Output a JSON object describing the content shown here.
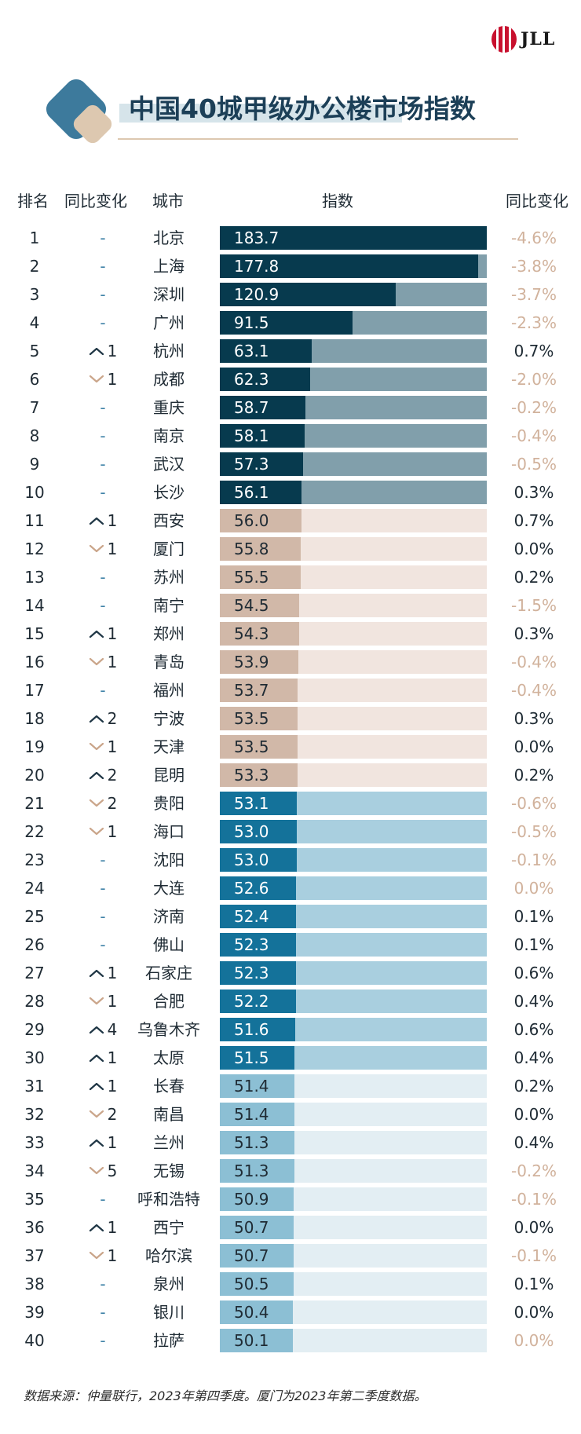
{
  "brand": {
    "logo_text": "JLL"
  },
  "title": "中国40城甲级办公楼市场指数",
  "headers": {
    "rank": "排名",
    "change": "同比变化",
    "city": "城市",
    "index": "指数",
    "yoy": "同比变化"
  },
  "source_note": "数据来源：仲量联行，2023年第四季度。厦门为2023年第二季度数据。",
  "colors": {
    "tier1_fill": "#073a4e",
    "tier1_track": "#819fab",
    "tier2_fill": "#d1b8a8",
    "tier2_track": "#f1e5df",
    "tier3_fill": "#14729a",
    "tier3_track": "#a9cfdf",
    "tier4_fill": "#8cbfd4",
    "tier4_track": "#e3eef3",
    "positive": "#1f2b34",
    "negative": "#d1b29c",
    "up_arrow": "#1f3645",
    "down_arrow": "#caa58a"
  },
  "chart_data": {
    "type": "bar",
    "title": "中国40城甲级办公楼市场指数",
    "xlabel": "指数",
    "ylabel": "城市",
    "xlim": [
      0,
      183.7
    ],
    "rows": [
      {
        "rank": "1",
        "dir": "none",
        "move": "-",
        "city": "北京",
        "value": 183.7,
        "label": "183.7",
        "yoy": "-4.6%",
        "tier": 1
      },
      {
        "rank": "2",
        "dir": "none",
        "move": "-",
        "city": "上海",
        "value": 177.8,
        "label": "177.8",
        "yoy": "-3.8%",
        "tier": 1
      },
      {
        "rank": "3",
        "dir": "none",
        "move": "-",
        "city": "深圳",
        "value": 120.9,
        "label": "120.9",
        "yoy": "-3.7%",
        "tier": 1
      },
      {
        "rank": "4",
        "dir": "none",
        "move": "-",
        "city": "广州",
        "value": 91.5,
        "label": "91.5",
        "yoy": "-2.3%",
        "tier": 1
      },
      {
        "rank": "5",
        "dir": "up",
        "move": "1",
        "city": "杭州",
        "value": 63.1,
        "label": "63.1",
        "yoy": "0.7%",
        "tier": 1
      },
      {
        "rank": "6",
        "dir": "down",
        "move": "1",
        "city": "成都",
        "value": 62.3,
        "label": "62.3",
        "yoy": "-2.0%",
        "tier": 1
      },
      {
        "rank": "7",
        "dir": "none",
        "move": "-",
        "city": "重庆",
        "value": 58.7,
        "label": "58.7",
        "yoy": "-0.2%",
        "tier": 1
      },
      {
        "rank": "8",
        "dir": "none",
        "move": "-",
        "city": "南京",
        "value": 58.1,
        "label": "58.1",
        "yoy": "-0.4%",
        "tier": 1
      },
      {
        "rank": "9",
        "dir": "none",
        "move": "-",
        "city": "武汉",
        "value": 57.3,
        "label": "57.3",
        "yoy": "-0.5%",
        "tier": 1
      },
      {
        "rank": "10",
        "dir": "none",
        "move": "-",
        "city": "长沙",
        "value": 56.1,
        "label": "56.1",
        "yoy": "0.3%",
        "tier": 1
      },
      {
        "rank": "11",
        "dir": "up",
        "move": "1",
        "city": "西安",
        "value": 56.0,
        "label": "56.0",
        "yoy": "0.7%",
        "tier": 2
      },
      {
        "rank": "12",
        "dir": "down",
        "move": "1",
        "city": "厦门",
        "value": 55.8,
        "label": "55.8",
        "yoy": "0.0%",
        "tier": 2
      },
      {
        "rank": "13",
        "dir": "none",
        "move": "-",
        "city": "苏州",
        "value": 55.5,
        "label": "55.5",
        "yoy": "0.2%",
        "tier": 2
      },
      {
        "rank": "14",
        "dir": "none",
        "move": "-",
        "city": "南宁",
        "value": 54.5,
        "label": "54.5",
        "yoy": "-1.5%",
        "tier": 2
      },
      {
        "rank": "15",
        "dir": "up",
        "move": "1",
        "city": "郑州",
        "value": 54.3,
        "label": "54.3",
        "yoy": "0.3%",
        "tier": 2
      },
      {
        "rank": "16",
        "dir": "down",
        "move": "1",
        "city": "青岛",
        "value": 53.9,
        "label": "53.9",
        "yoy": "-0.4%",
        "tier": 2
      },
      {
        "rank": "17",
        "dir": "none",
        "move": "-",
        "city": "福州",
        "value": 53.7,
        "label": "53.7",
        "yoy": "-0.4%",
        "tier": 2
      },
      {
        "rank": "18",
        "dir": "up",
        "move": "2",
        "city": "宁波",
        "value": 53.5,
        "label": "53.5",
        "yoy": "0.3%",
        "tier": 2
      },
      {
        "rank": "19",
        "dir": "down",
        "move": "1",
        "city": "天津",
        "value": 53.5,
        "label": "53.5",
        "yoy": "0.0%",
        "tier": 2
      },
      {
        "rank": "20",
        "dir": "up",
        "move": "2",
        "city": "昆明",
        "value": 53.3,
        "label": "53.3",
        "yoy": "0.2%",
        "tier": 2
      },
      {
        "rank": "21",
        "dir": "down",
        "move": "2",
        "city": "贵阳",
        "value": 53.1,
        "label": "53.1",
        "yoy": "-0.6%",
        "tier": 3
      },
      {
        "rank": "22",
        "dir": "down",
        "move": "1",
        "city": "海口",
        "value": 53.0,
        "label": "53.0",
        "yoy": "-0.5%",
        "tier": 3
      },
      {
        "rank": "23",
        "dir": "none",
        "move": "-",
        "city": "沈阳",
        "value": 53.0,
        "label": "53.0",
        "yoy": "-0.1%",
        "tier": 3
      },
      {
        "rank": "24",
        "dir": "none",
        "move": "-",
        "city": "大连",
        "value": 52.6,
        "label": "52.6",
        "yoy": "0.0%",
        "tier": 3,
        "yoy_muted": true
      },
      {
        "rank": "25",
        "dir": "none",
        "move": "-",
        "city": "济南",
        "value": 52.4,
        "label": "52.4",
        "yoy": "0.1%",
        "tier": 3
      },
      {
        "rank": "26",
        "dir": "none",
        "move": "-",
        "city": "佛山",
        "value": 52.3,
        "label": "52.3",
        "yoy": "0.1%",
        "tier": 3
      },
      {
        "rank": "27",
        "dir": "up",
        "move": "1",
        "city": "石家庄",
        "value": 52.3,
        "label": "52.3",
        "yoy": "0.6%",
        "tier": 3
      },
      {
        "rank": "28",
        "dir": "down",
        "move": "1",
        "city": "合肥",
        "value": 52.2,
        "label": "52.2",
        "yoy": "0.4%",
        "tier": 3
      },
      {
        "rank": "29",
        "dir": "up",
        "move": "4",
        "city": "乌鲁木齐",
        "value": 51.6,
        "label": "51.6",
        "yoy": "0.6%",
        "tier": 3
      },
      {
        "rank": "30",
        "dir": "up",
        "move": "1",
        "city": "太原",
        "value": 51.5,
        "label": "51.5",
        "yoy": "0.4%",
        "tier": 3
      },
      {
        "rank": "31",
        "dir": "up",
        "move": "1",
        "city": "长春",
        "value": 51.4,
        "label": "51.4",
        "yoy": "0.2%",
        "tier": 4
      },
      {
        "rank": "32",
        "dir": "down",
        "move": "2",
        "city": "南昌",
        "value": 51.4,
        "label": "51.4",
        "yoy": "0.0%",
        "tier": 4
      },
      {
        "rank": "33",
        "dir": "up",
        "move": "1",
        "city": "兰州",
        "value": 51.3,
        "label": "51.3",
        "yoy": "0.4%",
        "tier": 4
      },
      {
        "rank": "34",
        "dir": "down",
        "move": "5",
        "city": "无锡",
        "value": 51.3,
        "label": "51.3",
        "yoy": "-0.2%",
        "tier": 4
      },
      {
        "rank": "35",
        "dir": "none",
        "move": "-",
        "city": "呼和浩特",
        "value": 50.9,
        "label": "50.9",
        "yoy": "-0.1%",
        "tier": 4
      },
      {
        "rank": "36",
        "dir": "up",
        "move": "1",
        "city": "西宁",
        "value": 50.7,
        "label": "50.7",
        "yoy": "0.0%",
        "tier": 4
      },
      {
        "rank": "37",
        "dir": "down",
        "move": "1",
        "city": "哈尔滨",
        "value": 50.7,
        "label": "50.7",
        "yoy": "-0.1%",
        "tier": 4
      },
      {
        "rank": "38",
        "dir": "none",
        "move": "-",
        "city": "泉州",
        "value": 50.5,
        "label": "50.5",
        "yoy": "0.1%",
        "tier": 4
      },
      {
        "rank": "39",
        "dir": "none",
        "move": "-",
        "city": "银川",
        "value": 50.4,
        "label": "50.4",
        "yoy": "0.0%",
        "tier": 4
      },
      {
        "rank": "40",
        "dir": "none",
        "move": "-",
        "city": "拉萨",
        "value": 50.1,
        "label": "50.1",
        "yoy": "0.0%",
        "tier": 4,
        "yoy_muted": true
      }
    ]
  }
}
